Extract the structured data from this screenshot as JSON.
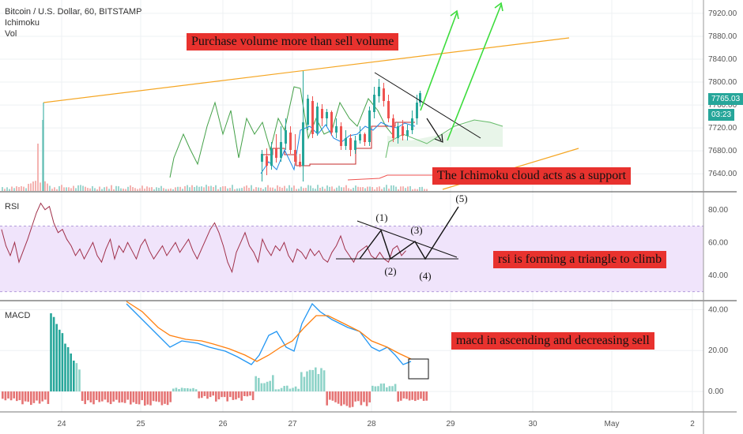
{
  "header": {
    "symbol": "Bitcoin / U.S. Dollar, 60, BITSTAMP",
    "indicator_1": "Ichimoku",
    "indicator_2": "Vol",
    "rsi_label": "RSI",
    "macd_label": "MACD"
  },
  "price_badge": {
    "value": "7765.03",
    "countdown": "03:23",
    "color": "#26a69a"
  },
  "annotations": {
    "top": "Purchase volume more than sell volume",
    "cloud": "The Ichimoku cloud acts as a support",
    "rsi": "rsi is forming a triangle to climb",
    "macd": "macd in ascending and decreasing sell",
    "waves": [
      "(1)",
      "(2)",
      "(3)",
      "(4)",
      "(5)"
    ]
  },
  "colors": {
    "up": "#26a69a",
    "down": "#ef5350",
    "ichimoku_lagging": "#43a047",
    "cloud_fill": "#e8f5e9",
    "rsi_band": "#f0e4fb",
    "rsi_line": "#a0304a",
    "macd_line": "#2196f3",
    "signal_line": "#ff7f0e",
    "trendline": "#f5a623",
    "forecast_arrow": "#3cdc3c",
    "note_bg": "#e8322e"
  },
  "chart_data": [
    {
      "type": "candlestick",
      "title": "Bitcoin / U.S. Dollar, 60, BITSTAMP",
      "x_ticks": [
        "24",
        "25",
        "26",
        "27",
        "28",
        "29",
        "30",
        "May",
        "2"
      ],
      "y_ticks": [
        "7920.00",
        "7880.00",
        "7840.00",
        "7800.00",
        "7760.00",
        "7720.00",
        "7680.00",
        "7640.00"
      ],
      "ylim": [
        7610,
        7935
      ],
      "last_price": 7765.03
    },
    {
      "type": "line",
      "title": "RSI",
      "y_ticks": [
        "80.00",
        "60.00",
        "40.00"
      ],
      "band": [
        30,
        70
      ],
      "ylim": [
        25,
        90
      ]
    },
    {
      "type": "line",
      "title": "MACD",
      "y_ticks": [
        "40.00",
        "20.00",
        "0.00"
      ],
      "ylim": [
        -10,
        44
      ]
    }
  ]
}
